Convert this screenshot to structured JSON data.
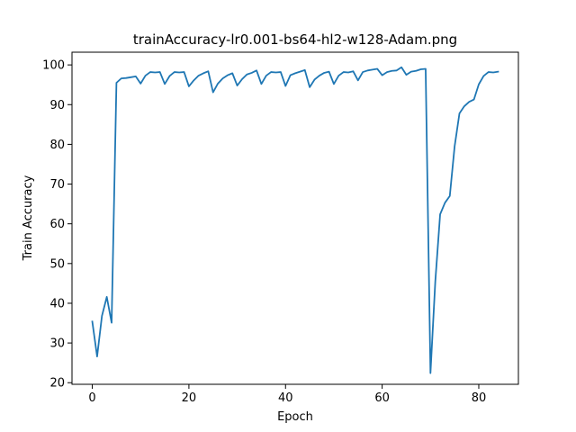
{
  "chart_data": {
    "type": "line",
    "title": "trainAccuracy-lr0.001-bs64-hl2-w128-Adam.png",
    "xlabel": "Epoch",
    "ylabel": "Train Accuracy",
    "xlim": [
      -4.2,
      88.2
    ],
    "ylim": [
      19.6,
      103.2
    ],
    "xticks": [
      0,
      20,
      40,
      60,
      80
    ],
    "yticks": [
      20,
      30,
      40,
      50,
      60,
      70,
      80,
      90,
      100
    ],
    "grid": false,
    "series_color": "#1f77b4",
    "series": [
      {
        "values": [
          35.4,
          26.6,
          36.8,
          41.6,
          35.1,
          95.5,
          96.6,
          96.7,
          96.9,
          97.1,
          95.3,
          97.3,
          98.2,
          98.1,
          98.2,
          95.2,
          97.2,
          98.2,
          98.1,
          98.2,
          94.6,
          96.1,
          97.3,
          97.9,
          98.4,
          93.1,
          95.3,
          96.6,
          97.4,
          97.9,
          94.8,
          96.4,
          97.6,
          98.0,
          98.6,
          95.2,
          97.3,
          98.2,
          98.1,
          98.2,
          94.7,
          97.4,
          97.9,
          98.3,
          98.7,
          94.4,
          96.3,
          97.3,
          98.0,
          98.3,
          95.2,
          97.3,
          98.2,
          98.1,
          98.4,
          96.1,
          98.2,
          98.6,
          98.8,
          99.0,
          97.4,
          98.2,
          98.5,
          98.6,
          99.4,
          97.5,
          98.3,
          98.5,
          98.9,
          99.0,
          22.4,
          45.5,
          62.4,
          65.3,
          67.0,
          79.5,
          87.8,
          89.6,
          90.7,
          91.3,
          95.1,
          97.2,
          98.2,
          98.1,
          98.3
        ]
      }
    ]
  }
}
